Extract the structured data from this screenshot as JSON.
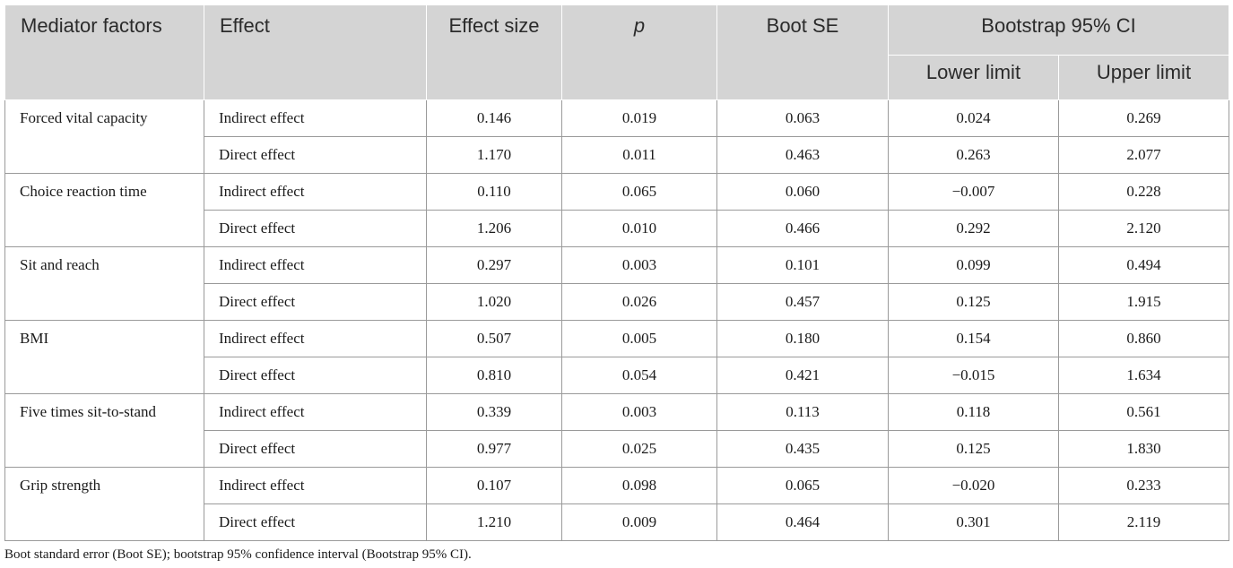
{
  "header": {
    "mediator_factors": "Mediator factors",
    "effect": "Effect",
    "effect_size": "Effect size",
    "p": "p",
    "boot_se": "Boot SE",
    "bootstrap_ci": "Bootstrap 95% CI",
    "lower_limit": "Lower limit",
    "upper_limit": "Upper limit"
  },
  "groups": [
    {
      "factor": "Forced vital capacity",
      "rows": [
        {
          "effect": "Indirect effect",
          "effect_size": "0.146",
          "p": "0.019",
          "boot_se": "0.063",
          "lower": "0.024",
          "upper": "0.269"
        },
        {
          "effect": "Direct effect",
          "effect_size": "1.170",
          "p": "0.011",
          "boot_se": "0.463",
          "lower": "0.263",
          "upper": "2.077"
        }
      ]
    },
    {
      "factor": "Choice reaction time",
      "rows": [
        {
          "effect": "Indirect effect",
          "effect_size": "0.110",
          "p": "0.065",
          "boot_se": "0.060",
          "lower": "−0.007",
          "upper": "0.228"
        },
        {
          "effect": "Direct effect",
          "effect_size": "1.206",
          "p": "0.010",
          "boot_se": "0.466",
          "lower": "0.292",
          "upper": "2.120"
        }
      ]
    },
    {
      "factor": "Sit and reach",
      "rows": [
        {
          "effect": "Indirect effect",
          "effect_size": "0.297",
          "p": "0.003",
          "boot_se": "0.101",
          "lower": "0.099",
          "upper": "0.494"
        },
        {
          "effect": "Direct effect",
          "effect_size": "1.020",
          "p": "0.026",
          "boot_se": "0.457",
          "lower": "0.125",
          "upper": "1.915"
        }
      ]
    },
    {
      "factor": "BMI",
      "rows": [
        {
          "effect": "Indirect effect",
          "effect_size": "0.507",
          "p": "0.005",
          "boot_se": "0.180",
          "lower": "0.154",
          "upper": "0.860"
        },
        {
          "effect": "Direct effect",
          "effect_size": "0.810",
          "p": "0.054",
          "boot_se": "0.421",
          "lower": "−0.015",
          "upper": "1.634"
        }
      ]
    },
    {
      "factor": "Five times sit-to-stand",
      "rows": [
        {
          "effect": "Indirect effect",
          "effect_size": "0.339",
          "p": "0.003",
          "boot_se": "0.113",
          "lower": "0.118",
          "upper": "0.561"
        },
        {
          "effect": "Direct effect",
          "effect_size": "0.977",
          "p": "0.025",
          "boot_se": "0.435",
          "lower": "0.125",
          "upper": "1.830"
        }
      ]
    },
    {
      "factor": "Grip strength",
      "rows": [
        {
          "effect": "Indirect effect",
          "effect_size": "0.107",
          "p": "0.098",
          "boot_se": "0.065",
          "lower": "−0.020",
          "upper": "0.233"
        },
        {
          "effect": "Direct effect",
          "effect_size": "1.210",
          "p": "0.009",
          "boot_se": "0.464",
          "lower": "0.301",
          "upper": "2.119"
        }
      ]
    }
  ],
  "footnote": "Boot standard error (Boot SE); bootstrap 95% confidence interval (Bootstrap 95% CI)."
}
